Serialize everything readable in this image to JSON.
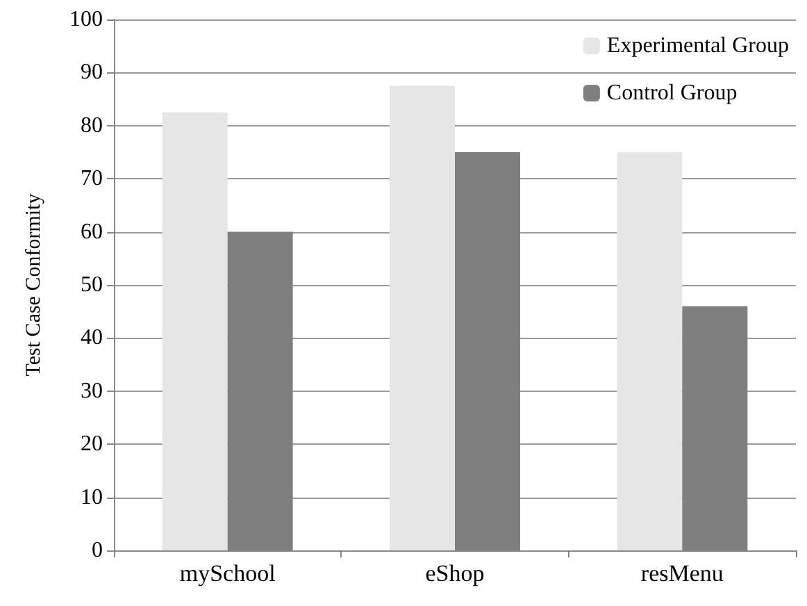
{
  "chart_data": {
    "type": "bar",
    "ylabel": "Test Case Conformity",
    "categories": [
      "mySchool",
      "eShop",
      "resMenu"
    ],
    "series": [
      {
        "name": "Experimental Group",
        "color": "#e6e6e6",
        "values": [
          82.5,
          87.5,
          75
        ]
      },
      {
        "name": "Control Group",
        "color": "#7f7f7f",
        "values": [
          60,
          75,
          46
        ]
      }
    ],
    "ylim": [
      0,
      100
    ],
    "yticks": [
      0,
      10,
      20,
      30,
      40,
      50,
      60,
      70,
      80,
      90,
      100
    ],
    "grid": "y",
    "legend": "top right"
  }
}
